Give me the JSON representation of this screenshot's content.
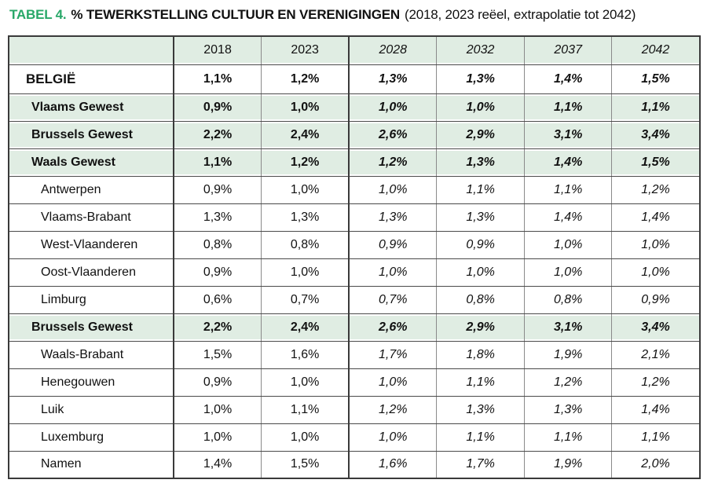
{
  "page": {
    "title_prefix": "TABEL 4.",
    "title_main": "% TEWERKSTELLING CULTUUR EN VERENIGINGEN",
    "title_suffix": "(2018, 2023 reëel, extrapolatie tot 2042)"
  },
  "colors": {
    "accent_green": "#29a869",
    "row_green": "#e0ede3",
    "border_dark": "#3a3a3a",
    "border_light": "#8a8a8a"
  },
  "table": {
    "columns": [
      "2018",
      "2023",
      "2028",
      "2032",
      "2037",
      "2042"
    ],
    "real_columns": [
      "2018",
      "2023"
    ],
    "extrapolated_columns": [
      "2028",
      "2032",
      "2037",
      "2042"
    ],
    "rows": [
      {
        "label": "BELGIË",
        "type": "country",
        "values": [
          "1,1%",
          "1,2%",
          "1,3%",
          "1,3%",
          "1,4%",
          "1,5%"
        ]
      },
      {
        "label": "Vlaams Gewest",
        "type": "region",
        "values": [
          "0,9%",
          "1,0%",
          "1,0%",
          "1,0%",
          "1,1%",
          "1,1%"
        ]
      },
      {
        "label": "Brussels Gewest",
        "type": "region",
        "values": [
          "2,2%",
          "2,4%",
          "2,6%",
          "2,9%",
          "3,1%",
          "3,4%"
        ]
      },
      {
        "label": "Waals Gewest",
        "type": "region",
        "values": [
          "1,1%",
          "1,2%",
          "1,2%",
          "1,3%",
          "1,4%",
          "1,5%"
        ]
      },
      {
        "label": "Antwerpen",
        "type": "province",
        "values": [
          "0,9%",
          "1,0%",
          "1,0%",
          "1,1%",
          "1,1%",
          "1,2%"
        ]
      },
      {
        "label": "Vlaams-Brabant",
        "type": "province",
        "values": [
          "1,3%",
          "1,3%",
          "1,3%",
          "1,3%",
          "1,4%",
          "1,4%"
        ]
      },
      {
        "label": "West-Vlaanderen",
        "type": "province",
        "values": [
          "0,8%",
          "0,8%",
          "0,9%",
          "0,9%",
          "1,0%",
          "1,0%"
        ]
      },
      {
        "label": "Oost-Vlaanderen",
        "type": "province",
        "values": [
          "0,9%",
          "1,0%",
          "1,0%",
          "1,0%",
          "1,0%",
          "1,0%"
        ]
      },
      {
        "label": "Limburg",
        "type": "province",
        "values": [
          "0,6%",
          "0,7%",
          "0,7%",
          "0,8%",
          "0,8%",
          "0,9%"
        ]
      },
      {
        "label": "Brussels Gewest",
        "type": "region",
        "values": [
          "2,2%",
          "2,4%",
          "2,6%",
          "2,9%",
          "3,1%",
          "3,4%"
        ]
      },
      {
        "label": "Waals-Brabant",
        "type": "province",
        "values": [
          "1,5%",
          "1,6%",
          "1,7%",
          "1,8%",
          "1,9%",
          "2,1%"
        ]
      },
      {
        "label": "Henegouwen",
        "type": "province",
        "values": [
          "0,9%",
          "1,0%",
          "1,0%",
          "1,1%",
          "1,2%",
          "1,2%"
        ]
      },
      {
        "label": "Luik",
        "type": "province",
        "values": [
          "1,0%",
          "1,1%",
          "1,2%",
          "1,3%",
          "1,3%",
          "1,4%"
        ]
      },
      {
        "label": "Luxemburg",
        "type": "province",
        "values": [
          "1,0%",
          "1,0%",
          "1,0%",
          "1,1%",
          "1,1%",
          "1,1%"
        ]
      },
      {
        "label": "Namen",
        "type": "province",
        "values": [
          "1,4%",
          "1,5%",
          "1,6%",
          "1,7%",
          "1,9%",
          "2,0%"
        ]
      }
    ]
  }
}
